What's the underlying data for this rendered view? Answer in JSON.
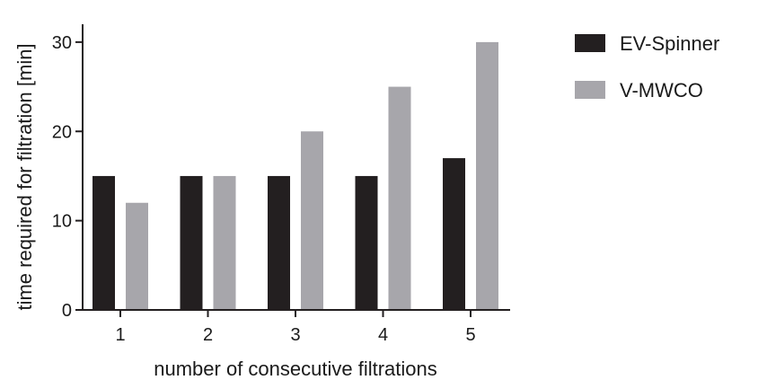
{
  "chart_data": {
    "type": "bar",
    "title": "",
    "xlabel": "number of consecutive filtrations",
    "ylabel": "time required for filtration [min]",
    "categories": [
      "1",
      "2",
      "3",
      "4",
      "5"
    ],
    "series": [
      {
        "name": "EV-Spinner",
        "values": [
          15,
          15,
          15,
          15,
          17
        ],
        "color": "#231f20"
      },
      {
        "name": "V-MWCO",
        "values": [
          12,
          15,
          20,
          25,
          30
        ],
        "color": "#a7a6ab"
      }
    ],
    "ylim": [
      0,
      32
    ],
    "yticks": [
      0,
      10,
      20,
      30
    ],
    "grid": false,
    "legend_position": "top-right"
  }
}
